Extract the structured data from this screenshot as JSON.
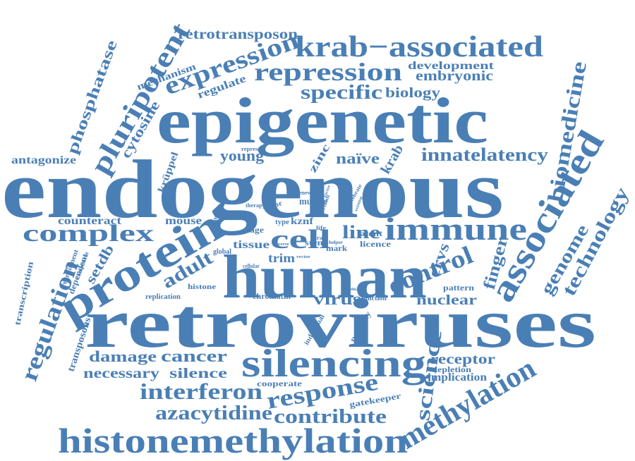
{
  "color": "#4a7fb5",
  "words": {
    "endogenous": "endogenous",
    "epigenetic": "epigenetic",
    "retroviruses": "retroviruses",
    "human": "human",
    "protein": "protein",
    "silencing": "silencing",
    "histonemethylation": "histonemethylation",
    "associated": "associated",
    "immune": "immune",
    "krab_associated": "krab−associated",
    "repression": "repression",
    "expression": "expression",
    "pluripotent": "pluripotent",
    "methylation": "methylation",
    "control": "control",
    "complex": "complex",
    "regulation": "regulation",
    "response": "response",
    "interferon": "interferon",
    "cell": "cell",
    "biomedicine": "biomedicine",
    "specific": "specific",
    "innatelatency": "innatelatency",
    "science": "science",
    "azacytidine": "azacytidine",
    "contribute": "contribute",
    "technology": "technology",
    "genome": "genome",
    "finger": "finger",
    "adult": "adult",
    "phosphatase": "phosphatase",
    "retrotransposon": "retrotransposon",
    "embryonic": "embryonic",
    "development": "development",
    "biology": "biology",
    "cancer": "cancer",
    "damage": "damage",
    "receptor": "receptor",
    "necessary": "necessary",
    "silence": "silence",
    "virus": "virus",
    "nuclear": "nuclear",
    "line": "line",
    "ervs": "ervs",
    "young": "young",
    "naive": "naïve",
    "krab": "krab",
    "cytosine": "cytosine",
    "setdb": "setdb",
    "regulate": "regulate",
    "mechanism": "mechanism",
    "antagonize": "antagonize",
    "krüppel": "krüppel",
    "zinc": "zinc",
    "counteract": "counteract",
    "mouse": "mouse",
    "trim": "trim",
    "tissue": "tissue",
    "stage": "stage",
    "kznf": "kznf",
    "murine": "murine",
    "stem": "stem",
    "mark": "mark",
    "licence": "licence",
    "latent": "latent",
    "implication": "implication",
    "depletion": "depletion",
    "cooperate": "cooperate",
    "gatekeeper": "gatekeeper",
    "pattern": "pattern",
    "chromatin": "chromatin",
    "function": "function",
    "replication": "replication",
    "histone": "histone",
    "dependent": "dependent",
    "recruitment": "recruitment",
    "transcription": "transcription",
    "transposons": "transposons",
    "pathway": "pathway",
    "individual": "individual",
    "global": "global",
    "cellular": "cellular",
    "element": "element",
    "therapy": "therapy",
    "renewal": "renewal",
    "vertebrate": "vertebrate",
    "represses": "represses",
    "repr": "repr",
    "type": "type",
    "life": "life",
    "viral": "viral",
    "diverse": "diverse",
    "helper": "helper",
    "domain": "domain",
    "component": "component",
    "result": "result",
    "existing": "existing",
    "factor": "factor",
    "vector": "vector"
  }
}
